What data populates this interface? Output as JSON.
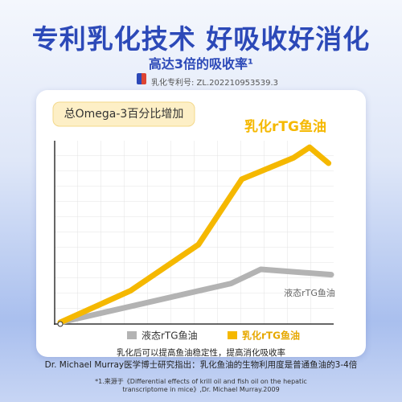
{
  "header": {
    "title": "专利乳化技术  好吸收好消化",
    "subtitle": "高达3倍的吸收率¹",
    "patent": "乳化专利号: ZL.202210953539.3"
  },
  "chart_data": {
    "type": "line",
    "title": "总Omega-3百分比增加",
    "xlim": [
      0,
      100
    ],
    "ylim": [
      0,
      100
    ],
    "series": [
      {
        "name": "液态rTG鱼油",
        "color": "#b3b3b3",
        "x": [
          0,
          63,
          74,
          100
        ],
        "values": [
          0,
          22,
          30,
          27
        ]
      },
      {
        "name": "乳化rTG鱼油",
        "color": "#f5b800",
        "x": [
          0,
          26,
          51,
          67,
          86,
          92,
          99
        ],
        "values": [
          0,
          18,
          44,
          81,
          93,
          99,
          90
        ]
      }
    ]
  },
  "notes": [
    "乳化后可以提高鱼油稳定性，提高消化吸收率",
    "Dr. Michael Murray医学博士研究指出：乳化鱼油的生物利用度是普通鱼油的3-4倍"
  ],
  "footnote": "*1.来源于《Differential effects of krill oil and fish oil on the hepatic transcriptome in mice》,Dr. Michael Murray.2009"
}
